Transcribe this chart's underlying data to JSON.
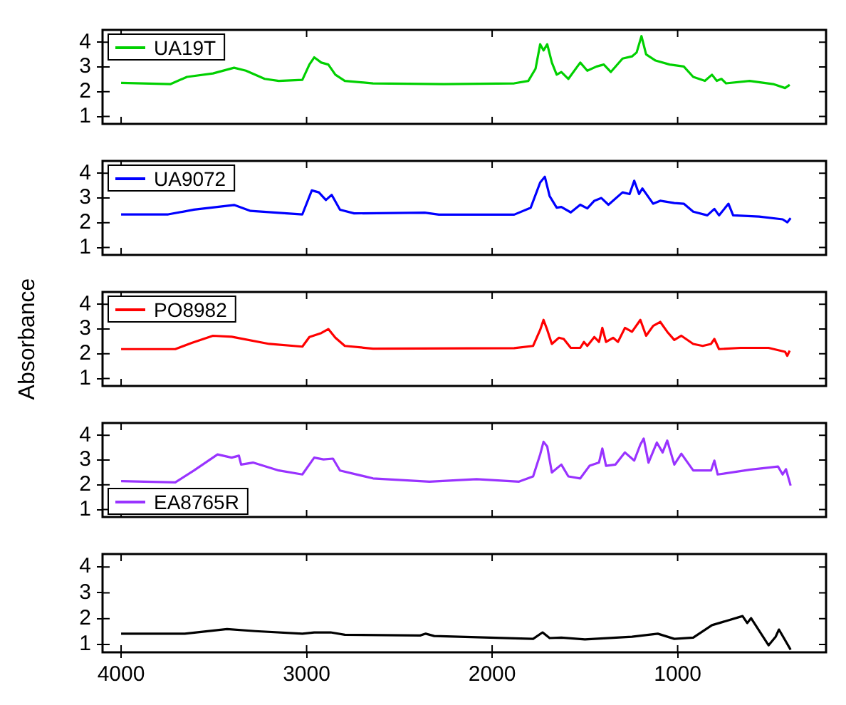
{
  "chart_data": [
    {
      "type": "line",
      "xlim": [
        4100,
        200
      ],
      "xticks": [
        4000,
        3000,
        2000,
        1000
      ],
      "ylim": [
        0.7,
        4.5
      ],
      "yticks": [
        1,
        2,
        3,
        4
      ],
      "tick_labels": "y",
      "legend": "top left",
      "grid": false,
      "marker": "none",
      "series": [
        {
          "name": "UA19T",
          "color": "#00d000",
          "x": [
            4000,
            3733,
            3645,
            3505,
            3391,
            3327,
            3226,
            3150,
            3023,
            2985,
            2959,
            2921,
            2883,
            2845,
            2794,
            2642,
            2261,
            1881,
            1805,
            1766,
            1741,
            1723,
            1703,
            1678,
            1652,
            1627,
            1589,
            1525,
            1487,
            1437,
            1398,
            1360,
            1297,
            1246,
            1221,
            1195,
            1170,
            1119,
            1043,
            967,
            916,
            853,
            815,
            789,
            764,
            739,
            612,
            485,
            421,
            396
          ],
          "values": [
            2.36,
            2.31,
            2.6,
            2.74,
            2.97,
            2.85,
            2.52,
            2.44,
            2.48,
            3.1,
            3.39,
            3.18,
            3.1,
            2.69,
            2.44,
            2.34,
            2.31,
            2.34,
            2.44,
            2.93,
            3.92,
            3.67,
            3.92,
            3.18,
            2.69,
            2.8,
            2.52,
            3.18,
            2.85,
            3.02,
            3.1,
            2.8,
            3.34,
            3.43,
            3.59,
            4.25,
            3.51,
            3.26,
            3.1,
            3.02,
            2.6,
            2.44,
            2.69,
            2.44,
            2.52,
            2.34,
            2.44,
            2.31,
            2.15,
            2.28
          ]
        }
      ]
    },
    {
      "type": "line",
      "xlim": [
        4100,
        200
      ],
      "xticks": [
        4000,
        3000,
        2000,
        1000
      ],
      "ylim": [
        0.7,
        4.5
      ],
      "yticks": [
        1,
        2,
        3,
        4
      ],
      "tick_labels": "y",
      "legend": "top left",
      "grid": false,
      "marker": "none",
      "series": [
        {
          "name": "UA9072",
          "color": "#0000ff",
          "x": [
            4000,
            3746,
            3607,
            3391,
            3302,
            3023,
            2972,
            2934,
            2896,
            2865,
            2820,
            2744,
            2363,
            2287,
            1881,
            1792,
            1741,
            1716,
            1690,
            1652,
            1627,
            1576,
            1525,
            1487,
            1449,
            1411,
            1373,
            1297,
            1259,
            1234,
            1208,
            1190,
            1132,
            1094,
            1018,
            967,
            916,
            840,
            802,
            777,
            726,
            701,
            561,
            434,
            409,
            391
          ],
          "values": [
            2.34,
            2.34,
            2.53,
            2.72,
            2.48,
            2.34,
            3.31,
            3.23,
            2.92,
            3.13,
            2.53,
            2.38,
            2.41,
            2.33,
            2.33,
            2.61,
            3.63,
            3.86,
            3.08,
            2.61,
            2.64,
            2.42,
            2.73,
            2.58,
            2.89,
            3.0,
            2.73,
            3.23,
            3.16,
            3.7,
            3.16,
            3.39,
            2.77,
            2.89,
            2.8,
            2.77,
            2.45,
            2.3,
            2.56,
            2.3,
            2.77,
            2.3,
            2.25,
            2.14,
            2.02,
            2.19
          ]
        }
      ]
    },
    {
      "type": "line",
      "xlim": [
        4100,
        200
      ],
      "xticks": [
        4000,
        3000,
        2000,
        1000
      ],
      "ylim": [
        0.7,
        4.5
      ],
      "yticks": [
        1,
        2,
        3,
        4
      ],
      "tick_labels": "y",
      "legend": "top left",
      "grid": false,
      "marker": "none",
      "ylabel": "Absorbance",
      "series": [
        {
          "name": "PO8982",
          "color": "#ff0000",
          "x": [
            4000,
            3708,
            3619,
            3505,
            3404,
            3201,
            3023,
            2985,
            2921,
            2883,
            2845,
            2794,
            2642,
            1881,
            1779,
            1741,
            1723,
            1703,
            1678,
            1640,
            1614,
            1576,
            1525,
            1505,
            1487,
            1449,
            1424,
            1406,
            1386,
            1348,
            1322,
            1284,
            1246,
            1201,
            1170,
            1132,
            1094,
            1056,
            1018,
            980,
            916,
            865,
            820,
            802,
            777,
            662,
            510,
            421,
            409,
            396
          ],
          "values": [
            2.19,
            2.19,
            2.44,
            2.73,
            2.69,
            2.4,
            2.29,
            2.68,
            2.84,
            3.0,
            2.65,
            2.32,
            2.21,
            2.23,
            2.32,
            2.97,
            3.37,
            2.97,
            2.4,
            2.65,
            2.6,
            2.24,
            2.24,
            2.48,
            2.32,
            2.68,
            2.48,
            3.05,
            2.48,
            2.65,
            2.48,
            3.05,
            2.89,
            3.37,
            2.73,
            3.13,
            3.29,
            2.89,
            2.56,
            2.73,
            2.4,
            2.32,
            2.4,
            2.6,
            2.19,
            2.24,
            2.24,
            2.08,
            1.92,
            2.13
          ]
        }
      ]
    },
    {
      "type": "line",
      "xlim": [
        4100,
        200
      ],
      "xticks": [
        4000,
        3000,
        2000,
        1000
      ],
      "ylim": [
        0.7,
        4.5
      ],
      "yticks": [
        1,
        2,
        3,
        4
      ],
      "tick_labels": "y",
      "legend": "bottom left",
      "grid": false,
      "marker": "none",
      "series": [
        {
          "name": "EA8765R",
          "color": "#9933ff",
          "x": [
            4000,
            3708,
            3607,
            3480,
            3404,
            3365,
            3353,
            3289,
            3150,
            3023,
            2959,
            2909,
            2858,
            2820,
            2642,
            2338,
            2084,
            1855,
            1779,
            1741,
            1723,
            1703,
            1678,
            1627,
            1589,
            1525,
            1475,
            1424,
            1406,
            1386,
            1335,
            1284,
            1234,
            1201,
            1183,
            1157,
            1112,
            1081,
            1056,
            1018,
            980,
            916,
            820,
            802,
            784,
            612,
            459,
            434,
            416,
            391
          ],
          "values": [
            2.15,
            2.1,
            2.58,
            3.23,
            3.1,
            3.18,
            2.82,
            2.9,
            2.58,
            2.42,
            3.1,
            3.03,
            3.06,
            2.58,
            2.26,
            2.13,
            2.23,
            2.13,
            2.34,
            3.23,
            3.74,
            3.55,
            2.5,
            2.82,
            2.34,
            2.26,
            2.77,
            2.9,
            3.47,
            2.77,
            2.82,
            3.31,
            2.98,
            3.63,
            3.87,
            2.9,
            3.71,
            3.31,
            3.79,
            2.82,
            3.26,
            2.58,
            2.58,
            2.98,
            2.42,
            2.61,
            2.74,
            2.42,
            2.63,
            1.97
          ]
        }
      ]
    },
    {
      "type": "line",
      "xlim": [
        4100,
        200
      ],
      "xticks": [
        4000,
        3000,
        2000,
        1000
      ],
      "ylim": [
        0.7,
        4.5
      ],
      "yticks": [
        1,
        2,
        3,
        4
      ],
      "grid": false,
      "marker": "none",
      "series": [
        {
          "color": "#000000",
          "x": [
            4000,
            3657,
            3429,
            3277,
            3023,
            2959,
            2871,
            2794,
            2388,
            2358,
            2312,
            1779,
            1728,
            1690,
            1627,
            1500,
            1246,
            1107,
            1018,
            916,
            815,
            650,
            625,
            604,
            510,
            472,
            454,
            391
          ],
          "values": [
            1.42,
            1.42,
            1.6,
            1.52,
            1.42,
            1.47,
            1.47,
            1.38,
            1.35,
            1.42,
            1.33,
            1.22,
            1.47,
            1.25,
            1.27,
            1.2,
            1.3,
            1.42,
            1.22,
            1.27,
            1.75,
            2.1,
            1.83,
            2.02,
            0.97,
            1.3,
            1.58,
            0.8
          ]
        }
      ]
    }
  ]
}
